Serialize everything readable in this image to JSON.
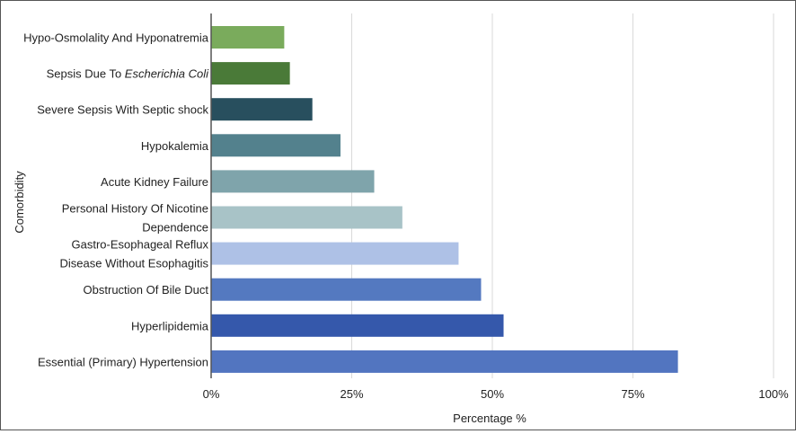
{
  "chart_data": {
    "type": "bar",
    "orientation": "horizontal",
    "title": "",
    "xlabel": "Percentage %",
    "ylabel": "Comorbidity",
    "xlim": [
      0,
      100
    ],
    "x_ticks": [
      "0%",
      "25%",
      "50%",
      "75%",
      "100%"
    ],
    "grid": "vertical",
    "legend": "none",
    "categories": [
      {
        "lines": [
          "Hypo-Osmolality And Hyponatremia"
        ],
        "value": 13,
        "color": "#7aab5c"
      },
      {
        "lines": [
          "Sepsis Due To |Escherichia Coli"
        ],
        "value": 14,
        "color": "#4a7a38"
      },
      {
        "lines": [
          "Severe Sepsis With Septic shock"
        ],
        "value": 18,
        "color": "#284f5e"
      },
      {
        "lines": [
          "Hypokalemia"
        ],
        "value": 23,
        "color": "#53818d"
      },
      {
        "lines": [
          "Acute Kidney Failure"
        ],
        "value": 29,
        "color": "#7fa4ab"
      },
      {
        "lines": [
          "Personal History Of Nicotine",
          "Dependence"
        ],
        "value": 34,
        "color": "#a8c3c7"
      },
      {
        "lines": [
          "Gastro-Esophageal Reflux",
          "Disease Without Esophagitis"
        ],
        "value": 44,
        "color": "#aec1e6"
      },
      {
        "lines": [
          "Obstruction Of Bile Duct"
        ],
        "value": 48,
        "color": "#5479c0"
      },
      {
        "lines": [
          "Hyperlipidemia"
        ],
        "value": 52,
        "color": "#3558ab"
      },
      {
        "lines": [
          "Essential (Primary) Hypertension"
        ],
        "value": 83,
        "color": "#5275c0"
      }
    ]
  }
}
